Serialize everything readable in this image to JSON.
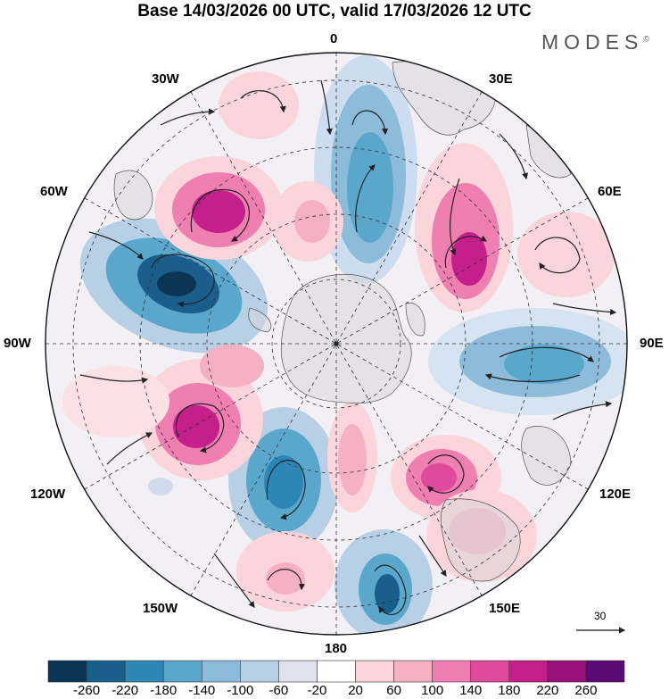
{
  "header": {
    "title": "Base 14/03/2026 00 UTC, valid 17/03/2026 12 UTC",
    "brand": "MODES",
    "brand_mark": "©"
  },
  "map": {
    "projection": "south polar stereographic",
    "longitude_labels": {
      "top": "0",
      "top_right": "30E",
      "upper_right": "60E",
      "right": "90E",
      "lower_right": "120E",
      "bottom_right": "150E",
      "bottom": "180",
      "bottom_left": "150W",
      "lower_left": "120W",
      "left": "90W",
      "upper_left": "60W",
      "top_left": "30W"
    },
    "vector_reference": {
      "value": "30"
    }
  },
  "colorbar": {
    "ticks": [
      "-260",
      "-220",
      "-180",
      "-140",
      "-100",
      "-60",
      "-20",
      "20",
      "60",
      "100",
      "140",
      "180",
      "220",
      "260"
    ],
    "colors": [
      "#0c3554",
      "#1a5f8c",
      "#2e86b7",
      "#5aa7cc",
      "#8cbcda",
      "#b8d0e6",
      "#e2e2ee",
      "#ffffff",
      "#fbd5da",
      "#f6b0c4",
      "#ee7fb0",
      "#e04a9c",
      "#c41f8a",
      "#96117a",
      "#5a0a73"
    ]
  }
}
